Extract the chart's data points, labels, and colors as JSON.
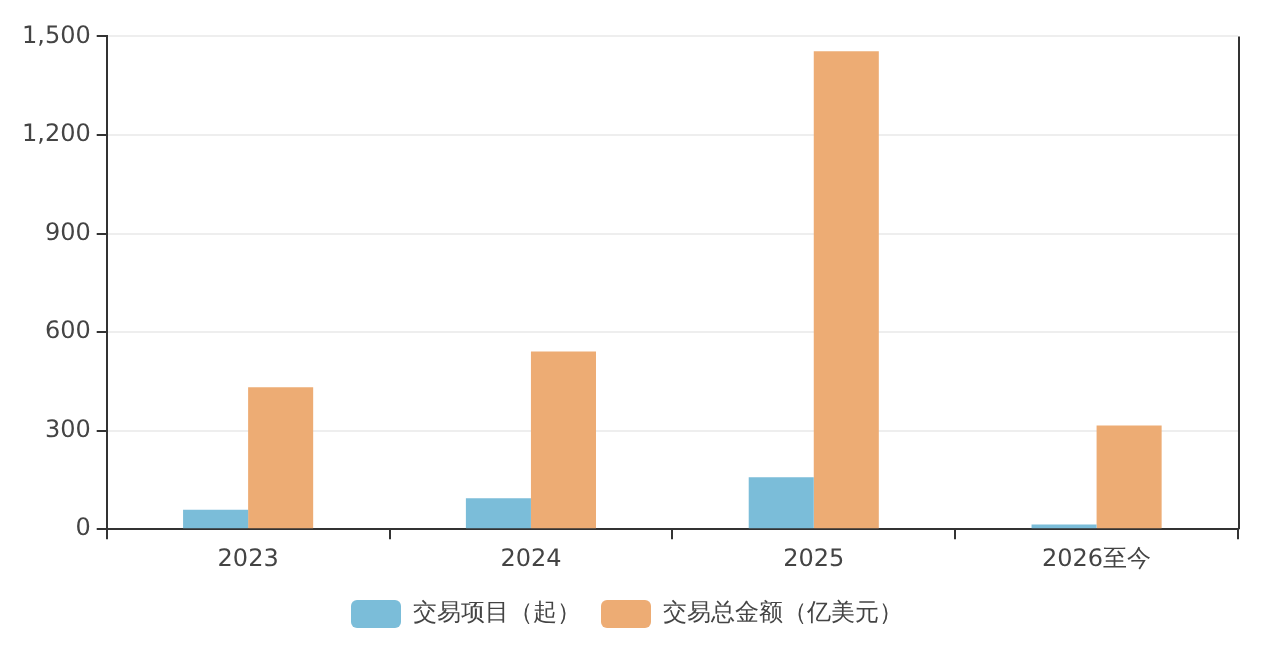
{
  "chart_data": {
    "type": "bar",
    "categories": [
      "2023",
      "2024",
      "2025",
      "2026至今"
    ],
    "series": [
      {
        "name": "交易项目（起）",
        "color": "#7bbdd9",
        "values": [
          59,
          94,
          158,
          14
        ]
      },
      {
        "name": "交易总金额（亿美元）",
        "color": "#edac74",
        "values": [
          432,
          541,
          1455,
          316
        ]
      }
    ],
    "ylim": [
      0,
      1500
    ],
    "yticks": [
      {
        "value": 0,
        "label": "0"
      },
      {
        "value": 300,
        "label": "300"
      },
      {
        "value": 600,
        "label": "600"
      },
      {
        "value": 900,
        "label": "900"
      },
      {
        "value": 1200,
        "label": "1,200"
      },
      {
        "value": 1500,
        "label": "1,500"
      }
    ],
    "grid": "y",
    "legend": "bottom"
  }
}
